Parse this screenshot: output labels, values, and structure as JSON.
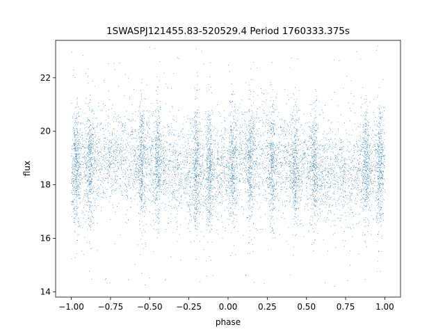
{
  "chart_data": {
    "type": "scatter",
    "title": "1SWASPJ121455.83-520529.4 Period 1760333.375s",
    "xlabel": "phase",
    "ylabel": "flux",
    "xlim": [
      -1.1,
      1.1
    ],
    "ylim": [
      13.8,
      23.4
    ],
    "xticks": [
      -1.0,
      -0.75,
      -0.5,
      -0.25,
      0.0,
      0.25,
      0.5,
      0.75,
      1.0
    ],
    "xtick_labels": [
      "−1.00",
      "−0.75",
      "−0.50",
      "−0.25",
      "0.00",
      "0.25",
      "0.50",
      "0.75",
      "1.00"
    ],
    "yticks": [
      14,
      16,
      18,
      20,
      22
    ],
    "ytick_labels": [
      "14",
      "16",
      "18",
      "20",
      "22"
    ],
    "grid": false,
    "marker_color": "#1f77b4",
    "series": [
      {
        "x_range": [
          -1.0,
          1.0
        ],
        "core_mean": 18.7,
        "core_band": [
          16.5,
          21.0
        ],
        "outlier_range": [
          14.2,
          23.2
        ],
        "dense_columns": [
          -0.97,
          -0.88,
          -0.55,
          -0.45,
          -0.2,
          -0.12,
          0.03,
          0.14,
          0.28,
          0.43,
          0.55,
          0.88,
          0.97
        ]
      }
    ]
  }
}
